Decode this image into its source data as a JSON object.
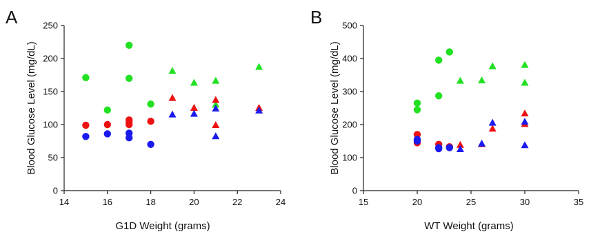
{
  "chart_data": [
    {
      "type": "scatter",
      "panel_label": "A",
      "xlabel": "G1D Weight (grams)",
      "ylabel": "Blood Glucose Level (mg/dL)",
      "xlim": [
        14,
        24
      ],
      "ylim": [
        0,
        250
      ],
      "xticks": [
        "14",
        "16",
        "18",
        "20",
        "22",
        "24"
      ],
      "yticks": [
        "0",
        "50",
        "100",
        "150",
        "200",
        "250"
      ],
      "grid": false,
      "series": [
        {
          "color": "#22e022",
          "marker": "circle",
          "points": [
            [
              15,
              171
            ],
            [
              16,
              122
            ],
            [
              17,
              220
            ],
            [
              17,
              170
            ],
            [
              18,
              131
            ]
          ]
        },
        {
          "color": "#22e022",
          "marker": "triangle",
          "points": [
            [
              19,
              181
            ],
            [
              20,
              163
            ],
            [
              21,
              166
            ],
            [
              21,
              130
            ],
            [
              23,
              187
            ]
          ]
        },
        {
          "color": "#ee1111",
          "marker": "circle",
          "points": [
            [
              15,
              99
            ],
            [
              16,
              100
            ],
            [
              17,
              107
            ],
            [
              17,
              104
            ],
            [
              17,
              100
            ],
            [
              18,
              105
            ]
          ]
        },
        {
          "color": "#ee1111",
          "marker": "triangle",
          "points": [
            [
              19,
              140
            ],
            [
              20,
              125
            ],
            [
              21,
              137
            ],
            [
              21,
              99
            ],
            [
              23,
              125
            ]
          ]
        },
        {
          "color": "#1a1aee",
          "marker": "circle",
          "points": [
            [
              15,
              82
            ],
            [
              16,
              86
            ],
            [
              17,
              87
            ],
            [
              17,
              80
            ],
            [
              18,
              70
            ]
          ]
        },
        {
          "color": "#1a1aee",
          "marker": "triangle",
          "points": [
            [
              19,
              115
            ],
            [
              20,
              116
            ],
            [
              21,
              124
            ],
            [
              21,
              82
            ],
            [
              23,
              121
            ]
          ]
        }
      ]
    },
    {
      "type": "scatter",
      "panel_label": "B",
      "xlabel": "WT Weight (grams)",
      "ylabel": "Blood Glucose Level (mg/dL)",
      "xlim": [
        15,
        35
      ],
      "ylim": [
        0,
        500
      ],
      "xticks": [
        "15",
        "20",
        "25",
        "30",
        "35"
      ],
      "yticks": [
        "0",
        "100",
        "200",
        "300",
        "400",
        "500"
      ],
      "grid": false,
      "series": [
        {
          "color": "#22e022",
          "marker": "circle",
          "points": [
            [
              20,
              265
            ],
            [
              20,
              245
            ],
            [
              22,
              395
            ],
            [
              22,
              287
            ],
            [
              23,
              420
            ]
          ]
        },
        {
          "color": "#22e022",
          "marker": "triangle",
          "points": [
            [
              24,
              332
            ],
            [
              26,
              333
            ],
            [
              27,
              376
            ],
            [
              30,
              380
            ],
            [
              30,
              326
            ]
          ]
        },
        {
          "color": "#ee1111",
          "marker": "circle",
          "points": [
            [
              20,
              170
            ],
            [
              20,
              145
            ],
            [
              22,
              140
            ],
            [
              23,
              133
            ]
          ]
        },
        {
          "color": "#ee1111",
          "marker": "triangle",
          "points": [
            [
              24,
              138
            ],
            [
              26,
              140
            ],
            [
              27,
              187
            ],
            [
              30,
              233
            ],
            [
              30,
              201
            ]
          ]
        },
        {
          "color": "#1a1aee",
          "marker": "circle",
          "points": [
            [
              20,
              155
            ],
            [
              20,
              150
            ],
            [
              22,
              130
            ],
            [
              22,
              127
            ],
            [
              23,
              130
            ]
          ]
        },
        {
          "color": "#1a1aee",
          "marker": "triangle",
          "points": [
            [
              24,
              125
            ],
            [
              26,
              142
            ],
            [
              27,
              205
            ],
            [
              30,
              208
            ],
            [
              30,
              137
            ]
          ]
        }
      ]
    }
  ]
}
